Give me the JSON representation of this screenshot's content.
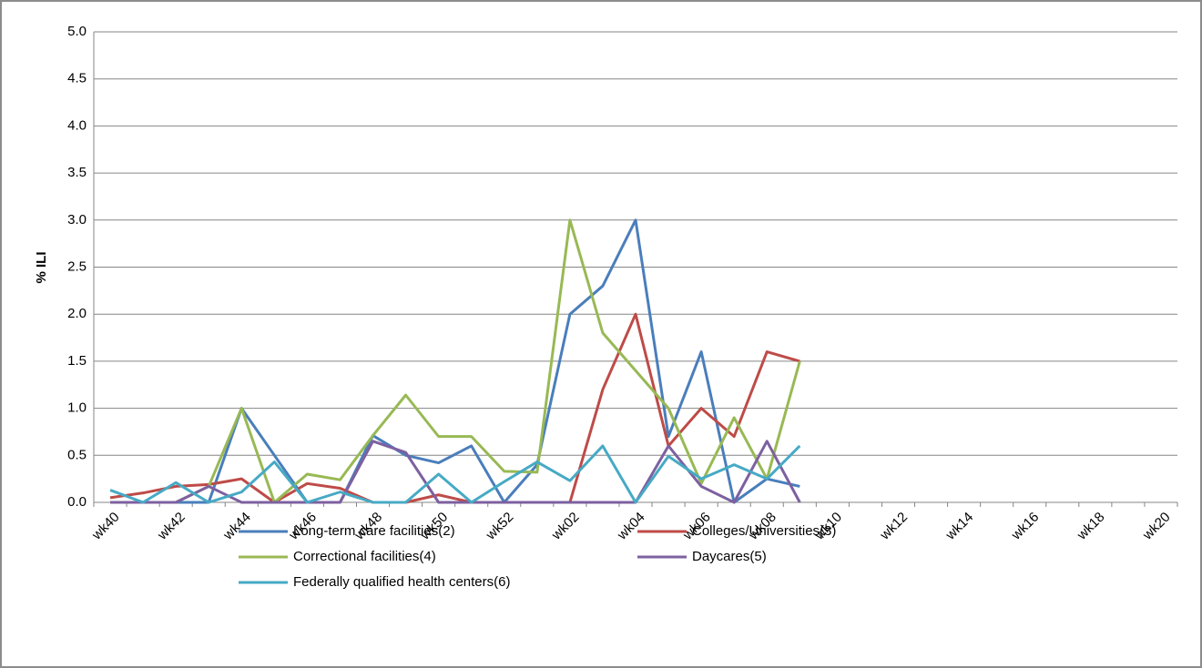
{
  "chart_data": {
    "type": "line",
    "y_label": "% ILI",
    "categories": [
      "wk40",
      null,
      "wk42",
      null,
      "wk44",
      null,
      "wk46",
      null,
      "wk48",
      null,
      "wk50",
      null,
      "wk52",
      null,
      "wk02",
      null,
      "wk04",
      null,
      "wk06",
      null,
      "wk08",
      null,
      "wk10",
      null,
      "wk12",
      null,
      "wk14",
      null,
      "wk16",
      null,
      "wk18",
      null,
      "wk20"
    ],
    "ylim": [
      0,
      5
    ],
    "yticks": [
      {
        "value": 0,
        "label": "0.0"
      },
      0.5,
      {
        "value": 1,
        "label": "1.0"
      },
      1.5,
      {
        "value": 2,
        "label": "2.0"
      },
      2.5,
      {
        "value": 3,
        "label": "3.0"
      },
      3.5,
      {
        "value": 4,
        "label": "4.0"
      },
      4.5,
      {
        "value": 5,
        "label": "5.0"
      }
    ],
    "grid": true,
    "legend": "bottom",
    "series": [
      {
        "name": "Long-term care facilities(2)",
        "color": "#4a7ebb",
        "values": [
          0,
          0,
          0,
          0,
          1.0,
          0.5,
          0,
          0,
          0.71,
          0.5,
          0.42,
          0.6,
          0,
          0.4,
          2.0,
          2.3,
          3.0,
          0.7,
          1.6,
          0,
          0.25,
          0.17,
          null,
          null,
          null,
          null,
          null,
          null,
          null,
          null,
          null,
          null,
          null
        ]
      },
      {
        "name": "Colleges/Universities(3)",
        "color": "#be4b48",
        "values": [
          0.05,
          0.1,
          0.17,
          0.19,
          0.25,
          0,
          0.2,
          0.15,
          0,
          0,
          0.08,
          0,
          0,
          0,
          0,
          1.2,
          2.0,
          0.6,
          1.0,
          0.7,
          1.6,
          1.5,
          null,
          null,
          null,
          null,
          null,
          null,
          null,
          null,
          null,
          null,
          null
        ]
      },
      {
        "name": "Correctional facilities(4)",
        "color": "#98b954",
        "values": [
          0,
          0,
          0,
          0.17,
          1.0,
          0,
          0.3,
          0.24,
          0.71,
          1.14,
          0.7,
          0.7,
          0.33,
          0.32,
          3.0,
          1.8,
          1.4,
          1.0,
          0.2,
          0.9,
          0.25,
          1.5,
          null,
          null,
          null,
          null,
          null,
          null,
          null,
          null,
          null,
          null,
          null
        ]
      },
      {
        "name": "Daycares(5)",
        "color": "#7d60a0",
        "values": [
          0,
          0,
          0,
          0.17,
          0,
          0,
          0,
          0,
          0.65,
          0.53,
          0,
          0,
          0,
          0,
          0,
          0,
          0,
          0.6,
          0.17,
          0,
          0.65,
          0,
          null,
          null,
          null,
          null,
          null,
          null,
          null,
          null,
          null,
          null,
          null
        ]
      },
      {
        "name": "Federally qualified health centers(6)",
        "color": "#46aac5",
        "values": [
          0.13,
          0,
          0.21,
          0,
          0.11,
          0.43,
          0,
          0.11,
          0,
          0,
          0.3,
          0,
          0.22,
          0.43,
          0.23,
          0.6,
          0,
          0.49,
          0.25,
          0.4,
          0.25,
          0.6,
          null,
          null,
          null,
          null,
          null,
          null,
          null,
          null,
          null,
          null,
          null
        ]
      }
    ]
  }
}
